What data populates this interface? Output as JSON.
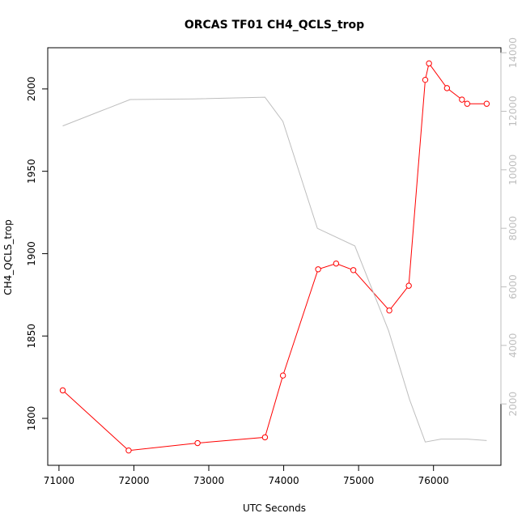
{
  "chart_data": {
    "type": "line",
    "title": "ORCAS TF01 CH4_QCLS_trop",
    "xlabel": "UTC Seconds",
    "ylabel": "CH4_QCLS_trop",
    "xlim": [
      70850,
      76900
    ],
    "ylim": [
      1771.5,
      2025
    ],
    "y2lim": [
      -97,
      14170
    ],
    "xticks": [
      71000,
      72000,
      73000,
      74000,
      75000,
      76000
    ],
    "yticks": [
      1800,
      1850,
      1900,
      1950,
      2000
    ],
    "y2ticks": [
      2000,
      4000,
      6000,
      8000,
      10000,
      12000,
      14000
    ],
    "grid": false,
    "series": [
      {
        "axis": "left",
        "color": "#ff0000",
        "style": "line-with-open-circles",
        "x": [
          71050,
          71930,
          72850,
          73750,
          73990,
          74460,
          74700,
          74930,
          75410,
          75670,
          75890,
          75940,
          76180,
          76380,
          76450,
          76710
        ],
        "y": [
          1817,
          1780.5,
          1785,
          1788.5,
          1826,
          1890.5,
          1894,
          1890,
          1865.5,
          1880.5,
          2005.5,
          2015.5,
          2000.5,
          1993.5,
          1991,
          1991
        ]
      },
      {
        "axis": "right",
        "color": "#bebebe",
        "style": "line",
        "x": [
          71050,
          71950,
          72800,
          73750,
          73990,
          74450,
          74950,
          75400,
          75680,
          75890,
          76100,
          76450,
          76710
        ],
        "y": [
          11500,
          12400,
          12420,
          12480,
          11650,
          8000,
          7400,
          4500,
          2150,
          700,
          800,
          800,
          750
        ]
      }
    ]
  }
}
